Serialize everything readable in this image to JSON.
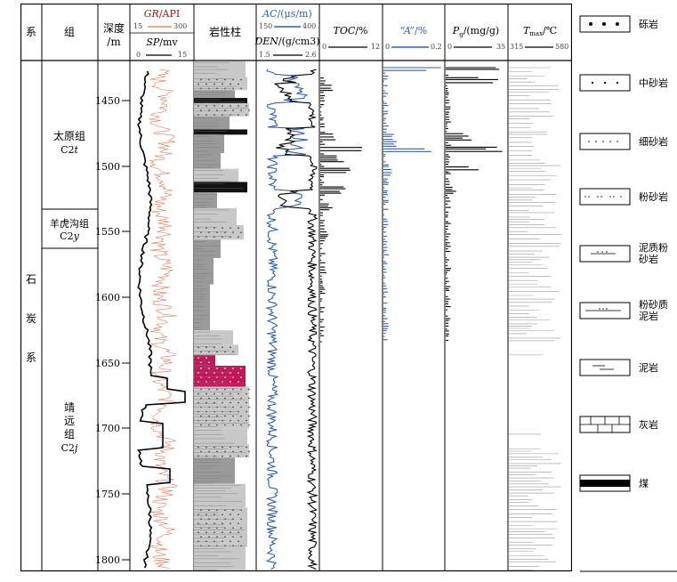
{
  "headers": {
    "system": "系",
    "group": "组",
    "depth": [
      "深度",
      "/m"
    ],
    "gr": {
      "name": "GR",
      "unit": "/API",
      "min": "15",
      "max": "300"
    },
    "sp": {
      "name": "SP",
      "unit": "/mv",
      "min": "0",
      "max": "15"
    },
    "lith": "岩性柱",
    "ac": {
      "name": "AC",
      "unit": "/(μs/m)",
      "min": "150",
      "max": "400"
    },
    "den": {
      "name": "DEN",
      "unit": "/(g/cm3)",
      "min": "1.5",
      "max": "2.6"
    },
    "toc": {
      "name": "TOC",
      "unit": "/%",
      "min": "0",
      "max": "12"
    },
    "a": {
      "name": "“A”",
      "unit": "/%",
      "min": "0",
      "max": "0.2"
    },
    "pg": {
      "name": "P",
      "sub": "g",
      "unit": "/(mg/g)",
      "min": "0",
      "max": "35"
    },
    "tmax": {
      "name": "T",
      "sub": "max",
      "unit": "/℃",
      "min": "315",
      "max": "580"
    }
  },
  "system_name": [
    "石",
    "炭",
    "系"
  ],
  "formations": [
    {
      "name": "太原组",
      "code": "C2",
      "italic": "t"
    },
    {
      "name": "羊虎沟组",
      "code": "C2",
      "italic": "y"
    },
    {
      "name": [
        "靖",
        "远",
        "组"
      ],
      "code": "C2",
      "italic": "j"
    }
  ],
  "depth_ticks": [
    1450,
    1500,
    1550,
    1600,
    1650,
    1700,
    1750,
    1800
  ],
  "legend": [
    {
      "label": "砾岩",
      "pattern": "conglomerate"
    },
    {
      "label": "中砂岩",
      "pattern": "medium-sandstone"
    },
    {
      "label": "细砂岩",
      "pattern": "fine-sandstone"
    },
    {
      "label": "粉砂岩",
      "pattern": "siltstone"
    },
    {
      "label": "泥质粉砂岩",
      "pattern": "argillaceous-siltstone"
    },
    {
      "label": "粉砂质泥岩",
      "pattern": "silty-mudstone"
    },
    {
      "label": "泥岩",
      "pattern": "mudstone"
    },
    {
      "label": "灰岩",
      "pattern": "limestone"
    },
    {
      "label": "煤",
      "pattern": "coal"
    }
  ],
  "colors": {
    "gr": "#e07a5a",
    "ac": "#2f5fb3",
    "a": "#2f5fb3",
    "header_red": "#8b1a1a",
    "coal_red": "#c2185b",
    "lith_gray": "#9a9a9a",
    "lith_light": "#c8c8c8"
  },
  "depth_range": [
    1410,
    1810
  ]
}
